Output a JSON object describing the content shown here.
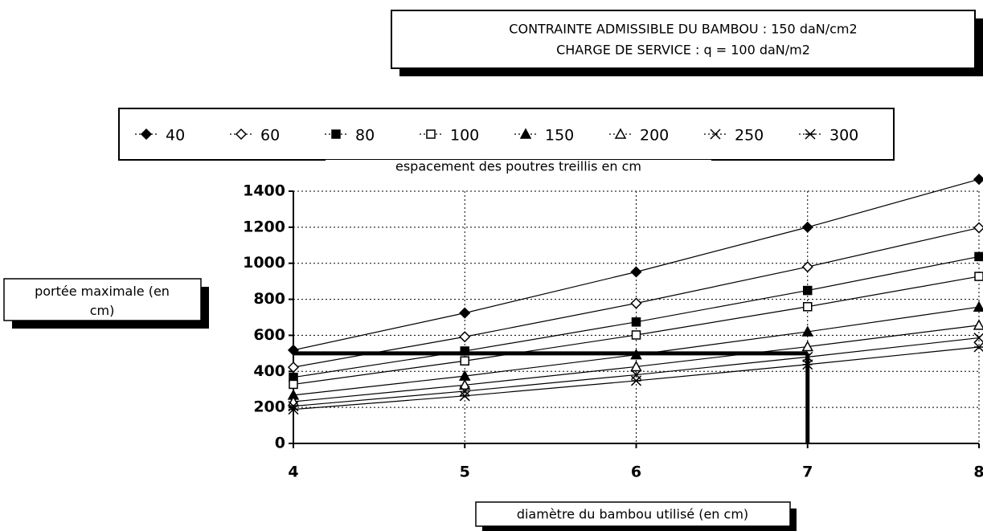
{
  "chart_data": {
    "type": "line",
    "title": [
      "CONTRAINTE ADMISSIBLE DU BAMBOU : 150 daN/cm2",
      "CHARGE DE SERVICE : q = 100 daN/m2"
    ],
    "legend_title": "espacement des poutres treillis en cm",
    "x_label": "diamètre du bambou utilisé (en cm)",
    "y_label": "portée maximale (en cm)",
    "x": [
      4,
      5,
      6,
      7,
      8
    ],
    "xlim": [
      4,
      8
    ],
    "xticks": [
      4,
      5,
      6,
      7,
      8
    ],
    "ylim": [
      0,
      1400
    ],
    "yticks": [
      0,
      200,
      400,
      600,
      800,
      1000,
      1200,
      1400
    ],
    "grid": true,
    "legend": "top",
    "reference_y": 500,
    "reference_x": 7,
    "series": [
      {
        "name": "40",
        "color": "#000000",
        "marker": "diamond-filled",
        "values": [
          518,
          724,
          952,
          1200,
          1466
        ]
      },
      {
        "name": "60",
        "color": "#000000",
        "marker": "diamond-open",
        "values": [
          423,
          592,
          778,
          980,
          1197
        ]
      },
      {
        "name": "80",
        "color": "#000000",
        "marker": "square-filled",
        "values": [
          367,
          513,
          674,
          849,
          1037
        ]
      },
      {
        "name": "100",
        "color": "#000000",
        "marker": "square-open",
        "values": [
          328,
          458,
          602,
          759,
          927
        ]
      },
      {
        "name": "150",
        "color": "#000000",
        "marker": "triangle-filled",
        "values": [
          268,
          374,
          492,
          620,
          757
        ]
      },
      {
        "name": "200",
        "color": "#000000",
        "marker": "triangle-open",
        "values": [
          232,
          324,
          426,
          537,
          656
        ]
      },
      {
        "name": "250",
        "color": "#000000",
        "marker": "cross",
        "values": [
          207,
          290,
          381,
          480,
          586
        ]
      },
      {
        "name": "300",
        "color": "#000000",
        "marker": "star",
        "values": [
          189,
          264,
          348,
          438,
          535
        ]
      }
    ]
  }
}
